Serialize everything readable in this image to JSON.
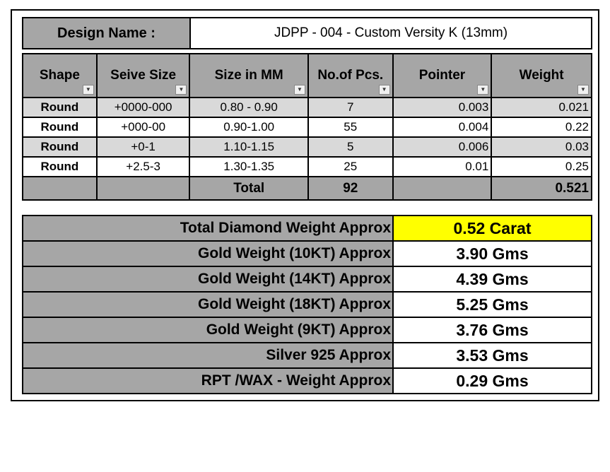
{
  "design": {
    "label": "Design Name :",
    "value": "JDPP - 004 - Custom Versity K (13mm)"
  },
  "stones": {
    "headers": [
      "Shape",
      "Seive Size",
      "Size in MM",
      "No.of Pcs.",
      "Pointer",
      "Weight"
    ],
    "rows": [
      {
        "shape": "Round",
        "seive": "+0000-000",
        "size_mm": "0.80 - 0.90",
        "pcs": "7",
        "pointer": "0.003",
        "weight": "0.021"
      },
      {
        "shape": "Round",
        "seive": "+000-00",
        "size_mm": "0.90-1.00",
        "pcs": "55",
        "pointer": "0.004",
        "weight": "0.22"
      },
      {
        "shape": "Round",
        "seive": "+0-1",
        "size_mm": "1.10-1.15",
        "pcs": "5",
        "pointer": "0.006",
        "weight": "0.03"
      },
      {
        "shape": "Round",
        "seive": "+2.5-3",
        "size_mm": "1.30-1.35",
        "pcs": "25",
        "pointer": "0.01",
        "weight": "0.25"
      }
    ],
    "total": {
      "label": "Total",
      "pcs": "92",
      "weight": "0.521"
    }
  },
  "summary": [
    {
      "label": "Total Diamond Weight Approx",
      "value": "0.52 Carat"
    },
    {
      "label": "Gold Weight (10KT) Approx",
      "value": "3.90 Gms"
    },
    {
      "label": "Gold Weight (14KT) Approx",
      "value": "4.39 Gms"
    },
    {
      "label": "Gold Weight (18KT) Approx",
      "value": "5.25 Gms"
    },
    {
      "label": "Gold Weight (9KT) Approx",
      "value": "3.76 Gms"
    },
    {
      "label": "Silver 925 Approx",
      "value": "3.53 Gms"
    },
    {
      "label": "RPT /WAX - Weight Approx",
      "value": "0.29 Gms"
    }
  ],
  "colors": {
    "header_gray": "#a6a6a6",
    "row_alt_gray": "#d9d9d9",
    "highlight_yellow": "#ffff00"
  },
  "icons": {
    "column_filter": "dropdown-arrow-icon",
    "active_filter": "funnel-icon"
  }
}
